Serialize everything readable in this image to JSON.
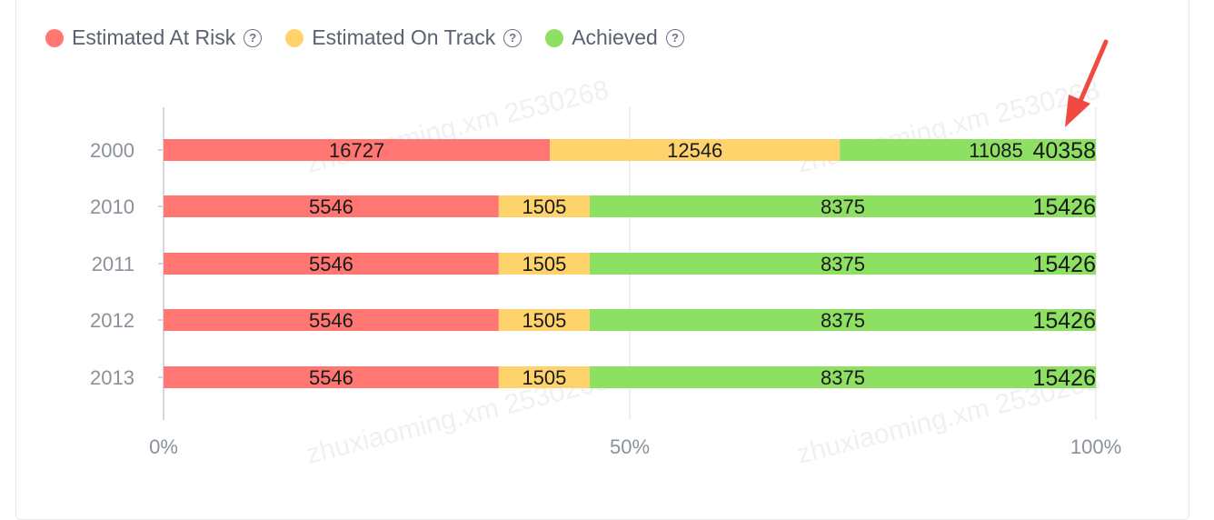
{
  "legend": {
    "items": [
      {
        "label": "Estimated At Risk",
        "color": "#ff7672",
        "help_icon": "question-circle-icon"
      },
      {
        "label": "Estimated On Track",
        "color": "#ffd36b",
        "help_icon": "question-circle-icon"
      },
      {
        "label": "Achieved",
        "color": "#8ee063",
        "help_icon": "question-circle-icon"
      }
    ]
  },
  "chart_data": {
    "type": "bar",
    "orientation": "horizontal",
    "stacked": true,
    "normalized": true,
    "categories": [
      "2000",
      "2010",
      "2011",
      "2012",
      "2013"
    ],
    "series": [
      {
        "name": "Estimated At Risk",
        "color": "#ff7672",
        "values": [
          16727,
          5546,
          5546,
          5546,
          5546
        ]
      },
      {
        "name": "Estimated On Track",
        "color": "#ffd36b",
        "values": [
          12546,
          1505,
          1505,
          1505,
          1505
        ]
      },
      {
        "name": "Achieved",
        "color": "#8ee063",
        "values": [
          11085,
          8375,
          8375,
          8375,
          8375
        ]
      }
    ],
    "totals": [
      40358,
      15426,
      15426,
      15426,
      15426
    ],
    "x_ticks": [
      "0%",
      "50%",
      "100%"
    ],
    "xlim": [
      0,
      1
    ],
    "grid": "vertical",
    "legend_position": "top-left"
  },
  "watermark": {
    "texts": [
      "zhuxiaoming.xm",
      "2530268"
    ]
  },
  "annotation": {
    "arrow_color": "#f04a41"
  }
}
